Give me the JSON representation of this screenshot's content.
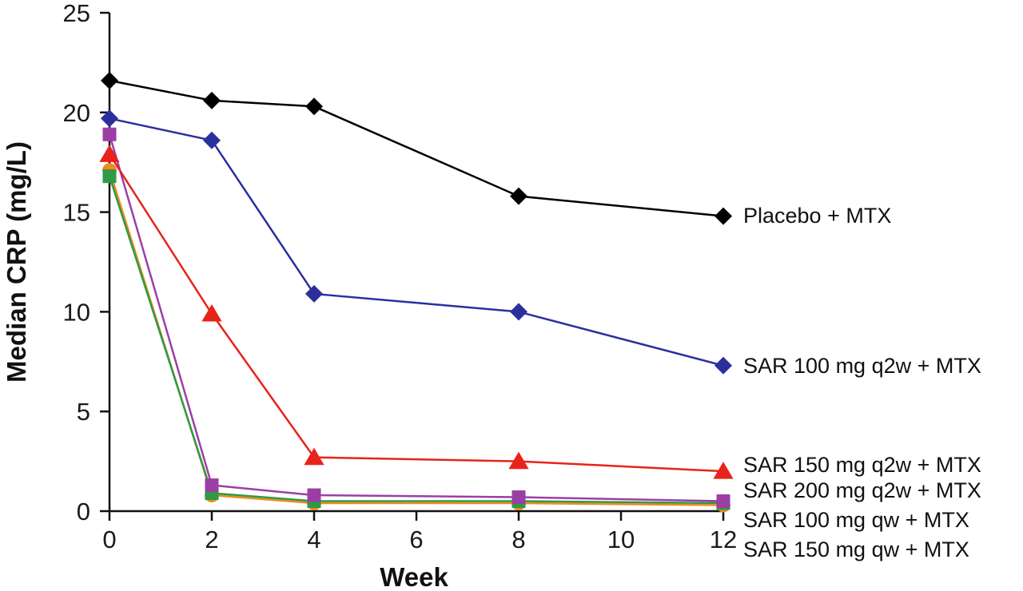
{
  "chart_data": {
    "type": "line",
    "title": "",
    "xlabel": "Week",
    "ylabel": "Median CRP (mg/L)",
    "x": [
      0,
      2,
      4,
      8,
      12
    ],
    "xticks": [
      "0",
      "2",
      "4",
      "6",
      "8",
      "10",
      "12"
    ],
    "yticks": [
      "0",
      "5",
      "10",
      "15",
      "20",
      "25"
    ],
    "xlim": [
      0,
      12
    ],
    "ylim": [
      0,
      25
    ],
    "grid": false,
    "legend": "right",
    "series": [
      {
        "name": "Placebo + MTX",
        "color": "#000000",
        "marker": "diamond",
        "values": [
          21.6,
          20.6,
          20.3,
          15.8,
          14.8
        ]
      },
      {
        "name": "SAR 100 mg q2w + MTX",
        "color": "#2b2f9e",
        "marker": "diamond",
        "values": [
          19.7,
          18.6,
          10.9,
          10.0,
          7.3
        ]
      },
      {
        "name": "SAR 150 mg q2w + MTX",
        "color": "#e8231a",
        "marker": "triangle",
        "values": [
          17.9,
          9.9,
          2.7,
          2.5,
          2.0
        ]
      },
      {
        "name": "SAR 200 mg q2w + MTX",
        "color": "#9b3fa6",
        "marker": "square",
        "values": [
          18.9,
          1.3,
          0.8,
          0.7,
          0.5
        ]
      },
      {
        "name": "SAR 100 mg qw + MTX",
        "color": "#2e9a46",
        "marker": "square",
        "values": [
          16.8,
          0.9,
          0.5,
          0.5,
          0.4
        ]
      },
      {
        "name": "SAR 150 mg qw + MTX",
        "color": "#f08a1e",
        "marker": "circle",
        "values": [
          17.1,
          0.8,
          0.4,
          0.4,
          0.3
        ]
      }
    ]
  }
}
